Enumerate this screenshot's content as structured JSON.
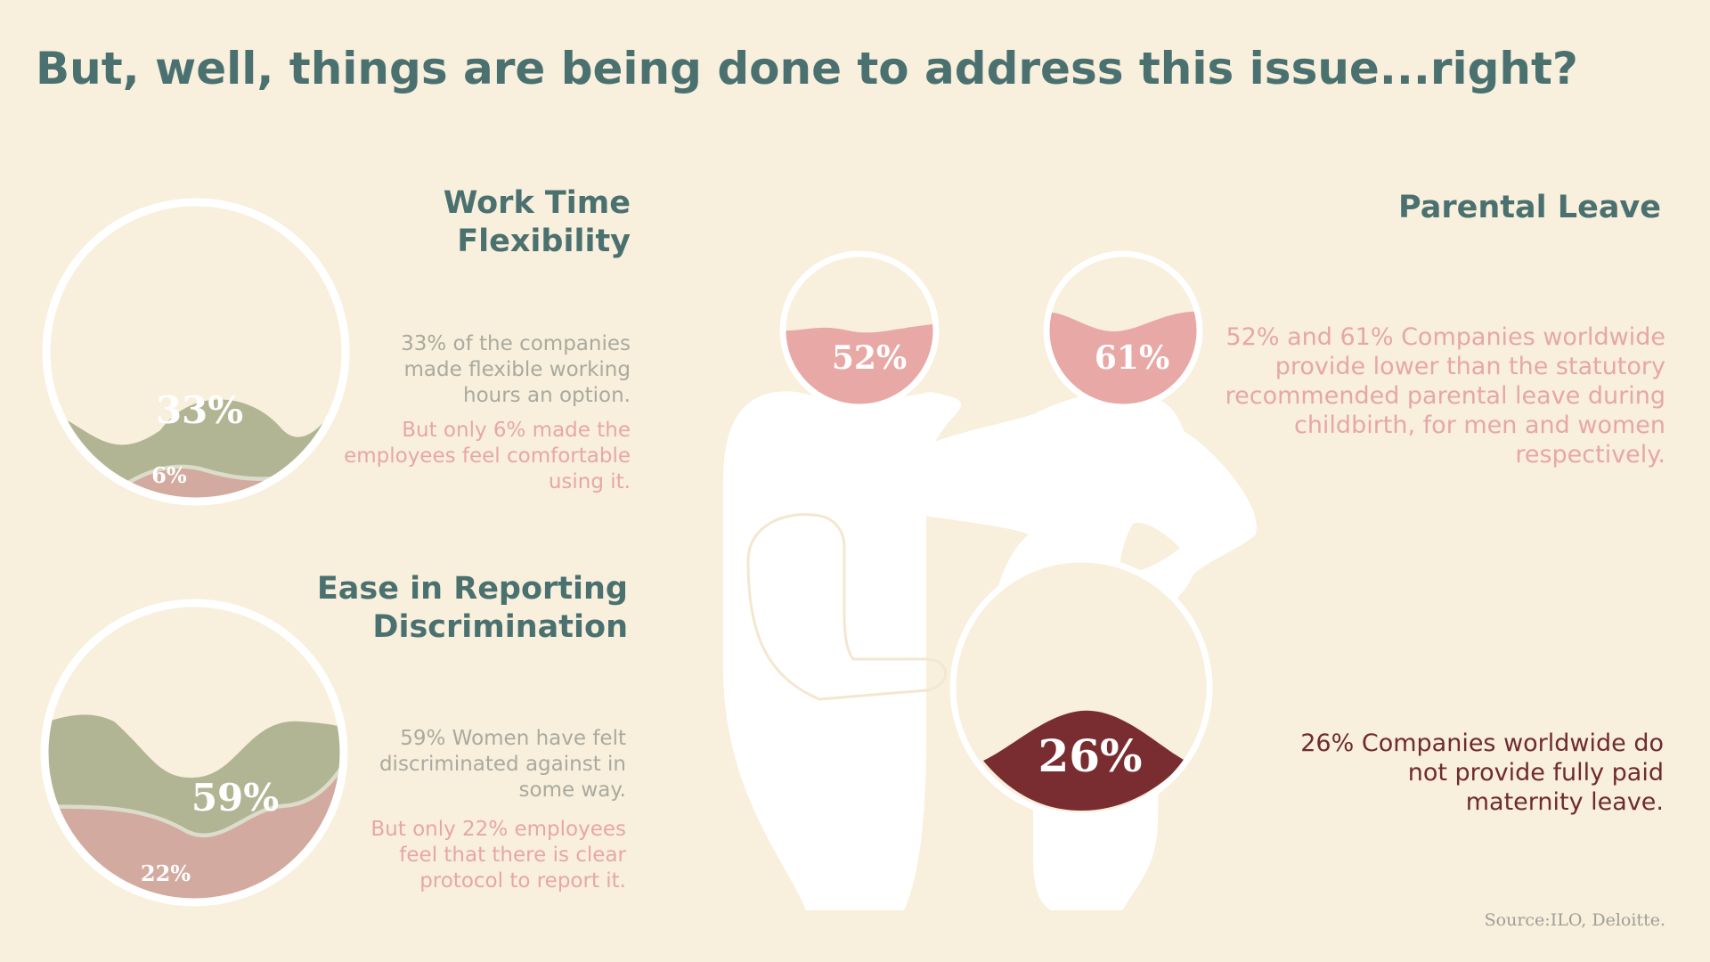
{
  "title": "But, well, things are being done to address this issue...right?",
  "colors": {
    "background": "#f8efdc",
    "heading": "#4a7170",
    "olive": "#b1b594",
    "dusty_pink": "#d3aa9f",
    "salmon": "#e8a8a6",
    "wine": "#7a2d30",
    "grey_text": "#a9aa9e",
    "figure": "#ffffff"
  },
  "work_time": {
    "heading_line1": "Work Time",
    "heading_line2": "Flexibility",
    "stat_main": "33%",
    "stat_sub": "6%",
    "main_value": 33,
    "sub_value": 6,
    "desc_grey": "33% of the companies made flexible working hours an option.",
    "desc_pink": "But only 6% made the employees feel comfortable using it."
  },
  "reporting": {
    "heading_line1": "Ease in Reporting",
    "heading_line2": "Discrimination",
    "stat_main": "59%",
    "stat_sub": "22%",
    "main_value": 59,
    "sub_value": 22,
    "desc_grey": "59% Women have felt discriminated against in some way.",
    "desc_pink": "But only 22% employees feel that there is clear protocol to report it."
  },
  "parental": {
    "heading": "Parental Leave",
    "stat_men": "52%",
    "stat_women": "61%",
    "men_value": 52,
    "women_value": 61,
    "desc": "52%  and 61% Companies worldwide provide lower than the statutory recommended parental leave during childbirth, for men and women respectively."
  },
  "maternity": {
    "stat": "26%",
    "value": 26,
    "desc": "26% Companies worldwide do not provide fully paid maternity leave."
  },
  "source": "Source:ILO,  Deloitte."
}
